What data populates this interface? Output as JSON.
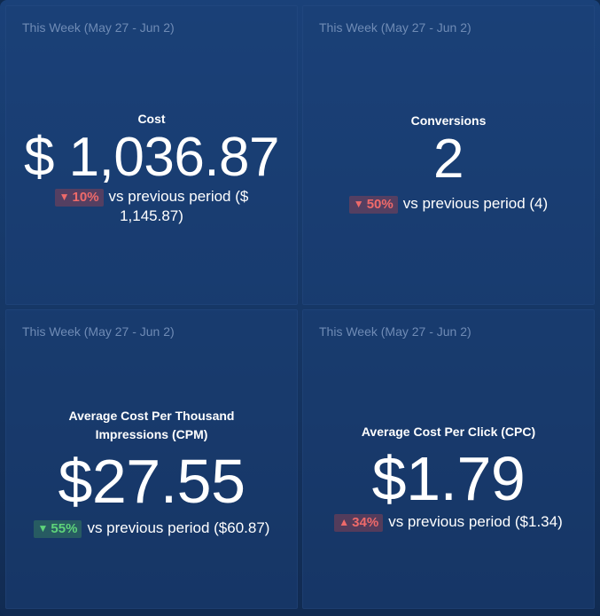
{
  "cards": [
    {
      "period": "This Week (May 27 - Jun 2)",
      "title": "Cost",
      "value": "$ 1,036.87",
      "change_arrow": "▼",
      "change_pct": "10%",
      "comparison_text": "vs previous period ($ 1,145.87)",
      "change_color": "#ef6a6a"
    },
    {
      "period": "This Week (May 27 - Jun 2)",
      "title": "Conversions",
      "value": "2",
      "change_arrow": "▼",
      "change_pct": "50%",
      "comparison_text": "vs previous period (4)",
      "change_color": "#ef6a6a"
    },
    {
      "period": "This Week (May 27 - Jun 2)",
      "title": "Average Cost Per Thousand Impressions (CPM)",
      "value": "$27.55",
      "change_arrow": "▼",
      "change_pct": "55%",
      "comparison_text": "vs previous period ($60.87)",
      "change_color": "#5ed47a"
    },
    {
      "period": "This Week (May 27 - Jun 2)",
      "title": "Average Cost Per Click (CPC)",
      "value": "$1.79",
      "change_arrow": "▲",
      "change_pct": "34%",
      "comparison_text": "vs previous period ($1.34)",
      "change_color": "#ef6a6a"
    }
  ]
}
